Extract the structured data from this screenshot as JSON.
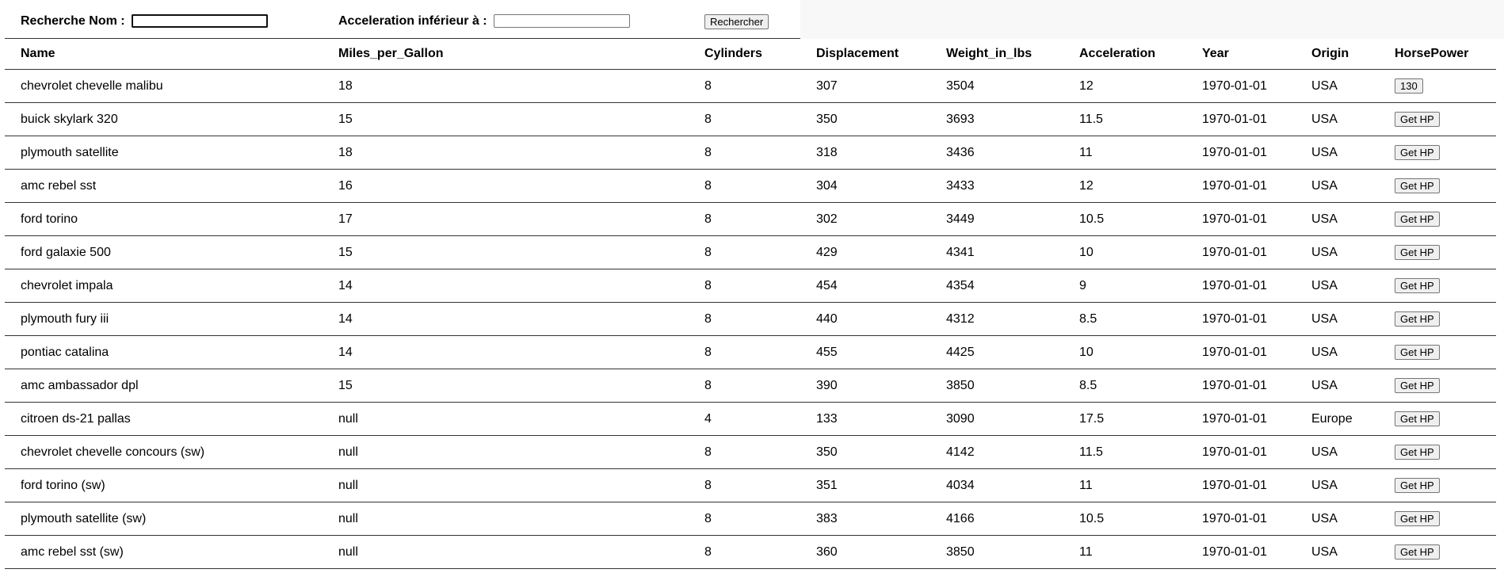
{
  "search": {
    "name_label": "Recherche Nom :",
    "name_value": "",
    "accel_label": "Acceleration inférieur à :",
    "accel_value": "",
    "button_label": "Rechercher"
  },
  "columns": [
    "Name",
    "Miles_per_Gallon",
    "Cylinders",
    "Displacement",
    "Weight_in_lbs",
    "Acceleration",
    "Year",
    "Origin",
    "HorsePower"
  ],
  "rows": [
    {
      "name": "chevrolet chevelle malibu",
      "mpg": "18",
      "cyl": "8",
      "disp": "307",
      "weight": "3504",
      "accel": "12",
      "year": "1970-01-01",
      "origin": "USA",
      "hp": "130"
    },
    {
      "name": "buick skylark 320",
      "mpg": "15",
      "cyl": "8",
      "disp": "350",
      "weight": "3693",
      "accel": "11.5",
      "year": "1970-01-01",
      "origin": "USA",
      "hp": "Get HP"
    },
    {
      "name": "plymouth satellite",
      "mpg": "18",
      "cyl": "8",
      "disp": "318",
      "weight": "3436",
      "accel": "11",
      "year": "1970-01-01",
      "origin": "USA",
      "hp": "Get HP"
    },
    {
      "name": "amc rebel sst",
      "mpg": "16",
      "cyl": "8",
      "disp": "304",
      "weight": "3433",
      "accel": "12",
      "year": "1970-01-01",
      "origin": "USA",
      "hp": "Get HP"
    },
    {
      "name": "ford torino",
      "mpg": "17",
      "cyl": "8",
      "disp": "302",
      "weight": "3449",
      "accel": "10.5",
      "year": "1970-01-01",
      "origin": "USA",
      "hp": "Get HP"
    },
    {
      "name": "ford galaxie 500",
      "mpg": "15",
      "cyl": "8",
      "disp": "429",
      "weight": "4341",
      "accel": "10",
      "year": "1970-01-01",
      "origin": "USA",
      "hp": "Get HP"
    },
    {
      "name": "chevrolet impala",
      "mpg": "14",
      "cyl": "8",
      "disp": "454",
      "weight": "4354",
      "accel": "9",
      "year": "1970-01-01",
      "origin": "USA",
      "hp": "Get HP"
    },
    {
      "name": "plymouth fury iii",
      "mpg": "14",
      "cyl": "8",
      "disp": "440",
      "weight": "4312",
      "accel": "8.5",
      "year": "1970-01-01",
      "origin": "USA",
      "hp": "Get HP"
    },
    {
      "name": "pontiac catalina",
      "mpg": "14",
      "cyl": "8",
      "disp": "455",
      "weight": "4425",
      "accel": "10",
      "year": "1970-01-01",
      "origin": "USA",
      "hp": "Get HP"
    },
    {
      "name": "amc ambassador dpl",
      "mpg": "15",
      "cyl": "8",
      "disp": "390",
      "weight": "3850",
      "accel": "8.5",
      "year": "1970-01-01",
      "origin": "USA",
      "hp": "Get HP"
    },
    {
      "name": "citroen ds-21 pallas",
      "mpg": "null",
      "cyl": "4",
      "disp": "133",
      "weight": "3090",
      "accel": "17.5",
      "year": "1970-01-01",
      "origin": "Europe",
      "hp": "Get HP"
    },
    {
      "name": "chevrolet chevelle concours (sw)",
      "mpg": "null",
      "cyl": "8",
      "disp": "350",
      "weight": "4142",
      "accel": "11.5",
      "year": "1970-01-01",
      "origin": "USA",
      "hp": "Get HP"
    },
    {
      "name": "ford torino (sw)",
      "mpg": "null",
      "cyl": "8",
      "disp": "351",
      "weight": "4034",
      "accel": "11",
      "year": "1970-01-01",
      "origin": "USA",
      "hp": "Get HP"
    },
    {
      "name": "plymouth satellite (sw)",
      "mpg": "null",
      "cyl": "8",
      "disp": "383",
      "weight": "4166",
      "accel": "10.5",
      "year": "1970-01-01",
      "origin": "USA",
      "hp": "Get HP"
    },
    {
      "name": "amc rebel sst (sw)",
      "mpg": "null",
      "cyl": "8",
      "disp": "360",
      "weight": "3850",
      "accel": "11",
      "year": "1970-01-01",
      "origin": "USA",
      "hp": "Get HP"
    }
  ]
}
